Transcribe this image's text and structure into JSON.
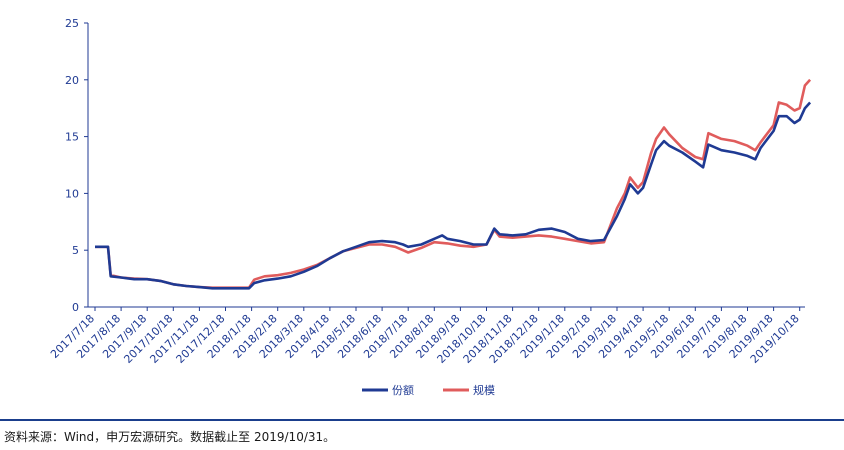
{
  "chart_data": {
    "type": "line",
    "ylim": [
      0,
      25
    ],
    "yticks": [
      0,
      5,
      10,
      15,
      20,
      25
    ],
    "x_tick_labels": [
      "2017/7/18",
      "2017/8/18",
      "2017/9/18",
      "2017/10/18",
      "2017/11/18",
      "2017/12/18",
      "2018/1/18",
      "2018/2/18",
      "2018/3/18",
      "2018/4/18",
      "2018/5/18",
      "2018/6/18",
      "2018/7/18",
      "2018/8/18",
      "2018/9/18",
      "2018/10/18",
      "2018/11/18",
      "2018/12/18",
      "2019/1/18",
      "2019/2/18",
      "2019/3/18",
      "2019/4/18",
      "2019/5/18",
      "2019/6/18",
      "2019/7/18",
      "2019/8/18",
      "2019/9/18",
      "2019/10/18"
    ],
    "x_end": 27.4,
    "grid": false,
    "legend_position": "bottom-center",
    "series": [
      {
        "name": "份额",
        "color": "#1f3a93",
        "points": [
          [
            0,
            5.3
          ],
          [
            0.1,
            5.3
          ],
          [
            0.5,
            5.3
          ],
          [
            0.6,
            2.7
          ],
          [
            1,
            2.6
          ],
          [
            1.5,
            2.45
          ],
          [
            2,
            2.45
          ],
          [
            2.5,
            2.3
          ],
          [
            3,
            2.0
          ],
          [
            3.5,
            1.85
          ],
          [
            4,
            1.75
          ],
          [
            4.5,
            1.65
          ],
          [
            5,
            1.65
          ],
          [
            5.5,
            1.65
          ],
          [
            5.9,
            1.65
          ],
          [
            6.1,
            2.1
          ],
          [
            6.5,
            2.35
          ],
          [
            7,
            2.5
          ],
          [
            7.5,
            2.7
          ],
          [
            8,
            3.1
          ],
          [
            8.5,
            3.6
          ],
          [
            9,
            4.3
          ],
          [
            9.5,
            4.9
          ],
          [
            10,
            5.3
          ],
          [
            10.5,
            5.7
          ],
          [
            11,
            5.8
          ],
          [
            11.5,
            5.7
          ],
          [
            11.8,
            5.5
          ],
          [
            12,
            5.3
          ],
          [
            12.5,
            5.5
          ],
          [
            13,
            6.0
          ],
          [
            13.3,
            6.3
          ],
          [
            13.5,
            6.0
          ],
          [
            14,
            5.8
          ],
          [
            14.5,
            5.5
          ],
          [
            15,
            5.5
          ],
          [
            15.3,
            6.9
          ],
          [
            15.5,
            6.4
          ],
          [
            16,
            6.3
          ],
          [
            16.5,
            6.4
          ],
          [
            17,
            6.8
          ],
          [
            17.5,
            6.9
          ],
          [
            18,
            6.6
          ],
          [
            18.5,
            6.0
          ],
          [
            19,
            5.8
          ],
          [
            19.5,
            5.9
          ],
          [
            20,
            8.0
          ],
          [
            20.3,
            9.5
          ],
          [
            20.5,
            10.8
          ],
          [
            20.8,
            10.0
          ],
          [
            21,
            10.5
          ],
          [
            21.3,
            12.5
          ],
          [
            21.5,
            13.8
          ],
          [
            21.8,
            14.6
          ],
          [
            22,
            14.2
          ],
          [
            22.5,
            13.6
          ],
          [
            23,
            12.8
          ],
          [
            23.3,
            12.3
          ],
          [
            23.5,
            14.3
          ],
          [
            24,
            13.8
          ],
          [
            24.5,
            13.6
          ],
          [
            25,
            13.3
          ],
          [
            25.3,
            13.0
          ],
          [
            25.5,
            14.0
          ],
          [
            26,
            15.5
          ],
          [
            26.2,
            16.8
          ],
          [
            26.5,
            16.8
          ],
          [
            26.8,
            16.2
          ],
          [
            27,
            16.5
          ],
          [
            27.2,
            17.5
          ],
          [
            27.4,
            18.0
          ]
        ]
      },
      {
        "name": "规模",
        "color": "#e05c5c",
        "points": [
          [
            0,
            5.3
          ],
          [
            0.1,
            5.3
          ],
          [
            0.5,
            5.3
          ],
          [
            0.6,
            2.8
          ],
          [
            1,
            2.6
          ],
          [
            1.5,
            2.5
          ],
          [
            2,
            2.45
          ],
          [
            2.5,
            2.3
          ],
          [
            3,
            2.0
          ],
          [
            3.5,
            1.85
          ],
          [
            4,
            1.75
          ],
          [
            4.5,
            1.7
          ],
          [
            5,
            1.7
          ],
          [
            5.5,
            1.7
          ],
          [
            5.9,
            1.7
          ],
          [
            6.1,
            2.4
          ],
          [
            6.5,
            2.7
          ],
          [
            7,
            2.8
          ],
          [
            7.5,
            3.0
          ],
          [
            8,
            3.3
          ],
          [
            8.5,
            3.7
          ],
          [
            9,
            4.3
          ],
          [
            9.5,
            4.9
          ],
          [
            10,
            5.2
          ],
          [
            10.5,
            5.5
          ],
          [
            11,
            5.5
          ],
          [
            11.5,
            5.3
          ],
          [
            11.8,
            5.0
          ],
          [
            12,
            4.8
          ],
          [
            12.5,
            5.2
          ],
          [
            13,
            5.7
          ],
          [
            13.5,
            5.6
          ],
          [
            14,
            5.4
          ],
          [
            14.5,
            5.3
          ],
          [
            15,
            5.5
          ],
          [
            15.3,
            6.8
          ],
          [
            15.5,
            6.2
          ],
          [
            16,
            6.1
          ],
          [
            16.5,
            6.2
          ],
          [
            17,
            6.3
          ],
          [
            17.5,
            6.2
          ],
          [
            18,
            6.0
          ],
          [
            18.5,
            5.8
          ],
          [
            19,
            5.6
          ],
          [
            19.5,
            5.7
          ],
          [
            20,
            8.7
          ],
          [
            20.3,
            10.0
          ],
          [
            20.5,
            11.4
          ],
          [
            20.8,
            10.5
          ],
          [
            21,
            11.0
          ],
          [
            21.3,
            13.5
          ],
          [
            21.5,
            14.8
          ],
          [
            21.8,
            15.8
          ],
          [
            22,
            15.2
          ],
          [
            22.5,
            14.0
          ],
          [
            23,
            13.2
          ],
          [
            23.3,
            13.0
          ],
          [
            23.5,
            15.3
          ],
          [
            24,
            14.8
          ],
          [
            24.5,
            14.6
          ],
          [
            25,
            14.2
          ],
          [
            25.3,
            13.8
          ],
          [
            25.5,
            14.5
          ],
          [
            26,
            16.0
          ],
          [
            26.2,
            18.0
          ],
          [
            26.5,
            17.8
          ],
          [
            26.8,
            17.3
          ],
          [
            27,
            17.5
          ],
          [
            27.2,
            19.5
          ],
          [
            27.4,
            20.0
          ]
        ]
      }
    ]
  },
  "source_note": "资料来源：Wind，申万宏源研究。数据截止至 2019/10/31。"
}
